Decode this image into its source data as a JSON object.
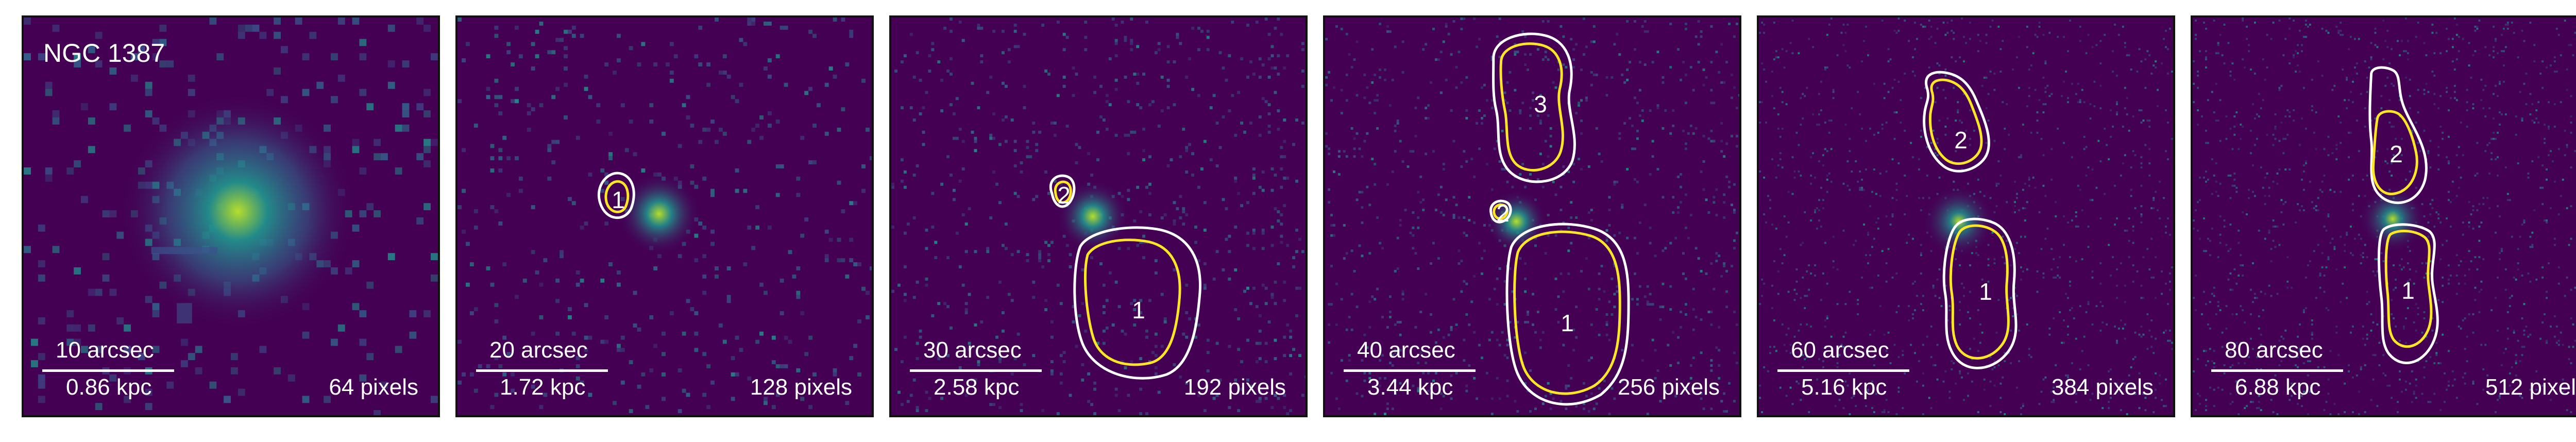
{
  "galaxy_name": "NGC 1387",
  "colors": {
    "background": "#440154",
    "contour_outer": "#ffffff",
    "contour_inner": "#fde725",
    "emission": "#21918c",
    "peak": "#b5de2b"
  },
  "panels": [
    {
      "arcsec": "10 arcsec",
      "kpc": "0.86 kpc",
      "pixels": "64 pixels",
      "regions": []
    },
    {
      "arcsec": "20 arcsec",
      "kpc": "1.72 kpc",
      "pixels": "128 pixels",
      "regions": [
        "1"
      ]
    },
    {
      "arcsec": "30 arcsec",
      "kpc": "2.58 kpc",
      "pixels": "192 pixels",
      "regions": [
        "2",
        "1"
      ]
    },
    {
      "arcsec": "40 arcsec",
      "kpc": "3.44 kpc",
      "pixels": "256 pixels",
      "regions": [
        "3",
        "2",
        "1"
      ]
    },
    {
      "arcsec": "60 arcsec",
      "kpc": "5.16 kpc",
      "pixels": "384 pixels",
      "regions": [
        "2",
        "1"
      ]
    },
    {
      "arcsec": "80 arcsec",
      "kpc": "6.88 kpc",
      "pixels": "512 pixels",
      "regions": [
        "2",
        "1"
      ]
    }
  ]
}
